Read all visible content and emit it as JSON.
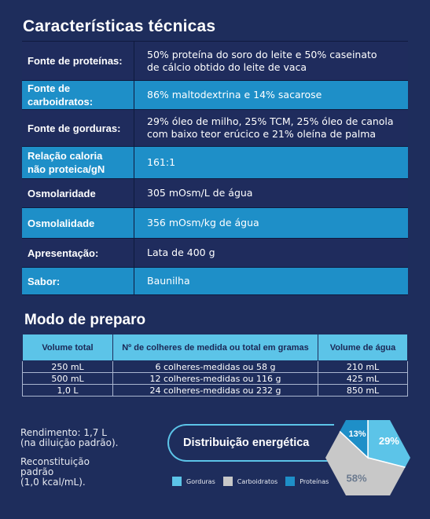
{
  "specs": {
    "title": "Características técnicas",
    "rows": [
      {
        "label": "Fonte de proteínas:",
        "value": "50% proteína do soro do leite e 50% caseinato\nde cálcio obtido do leite de vaca"
      },
      {
        "label": "Fonte de carboidratos:",
        "value": "86% maltodextrina e 14% sacarose"
      },
      {
        "label": "Fonte de gorduras:",
        "value": "29% óleo de milho, 25% TCM, 25% óleo de canola\ncom baixo teor erúcico e 21% oleína de palma"
      },
      {
        "label": "Relação caloria\nnão proteica/gN",
        "value": "161:1"
      },
      {
        "label": "Osmolaridade",
        "value": "305 mOsm/L de água"
      },
      {
        "label": "Osmolalidade",
        "value": "356 mOsm/kg de água"
      },
      {
        "label": "Apresentação:",
        "value": "Lata de 400 g"
      },
      {
        "label": "Sabor:",
        "value": "Baunilha"
      }
    ]
  },
  "preparation": {
    "title": "Modo de preparo",
    "headers": [
      "Volume total",
      "Nº de colheres de medida ou total em gramas",
      "Volume de água"
    ],
    "rows": [
      [
        "250 mL",
        "6 colheres-medidas ou 58 g",
        "210 mL"
      ],
      [
        "500 mL",
        "12 colheres-medidas ou 116 g",
        "425 mL"
      ],
      [
        "1,0 L",
        "24 colheres-medidas ou 232 g",
        "850 mL"
      ]
    ]
  },
  "notes": {
    "yield": "Rendimento: 1,7 L\n(na diluição padrão).",
    "reconstitution": "Reconstituição\npadrão\n(1,0 kcal/mL)."
  },
  "energy": {
    "title": "Distribuição energética",
    "slices": [
      {
        "name": "Gorduras",
        "percent": 29,
        "label": "29%",
        "color": "#5cc4e8"
      },
      {
        "name": "Carboidratos",
        "percent": 58,
        "label": "58%",
        "color": "#c8c8c8"
      },
      {
        "name": "Proteínas",
        "percent": 13,
        "label": "13%",
        "color": "#1e8fc8"
      }
    ]
  }
}
